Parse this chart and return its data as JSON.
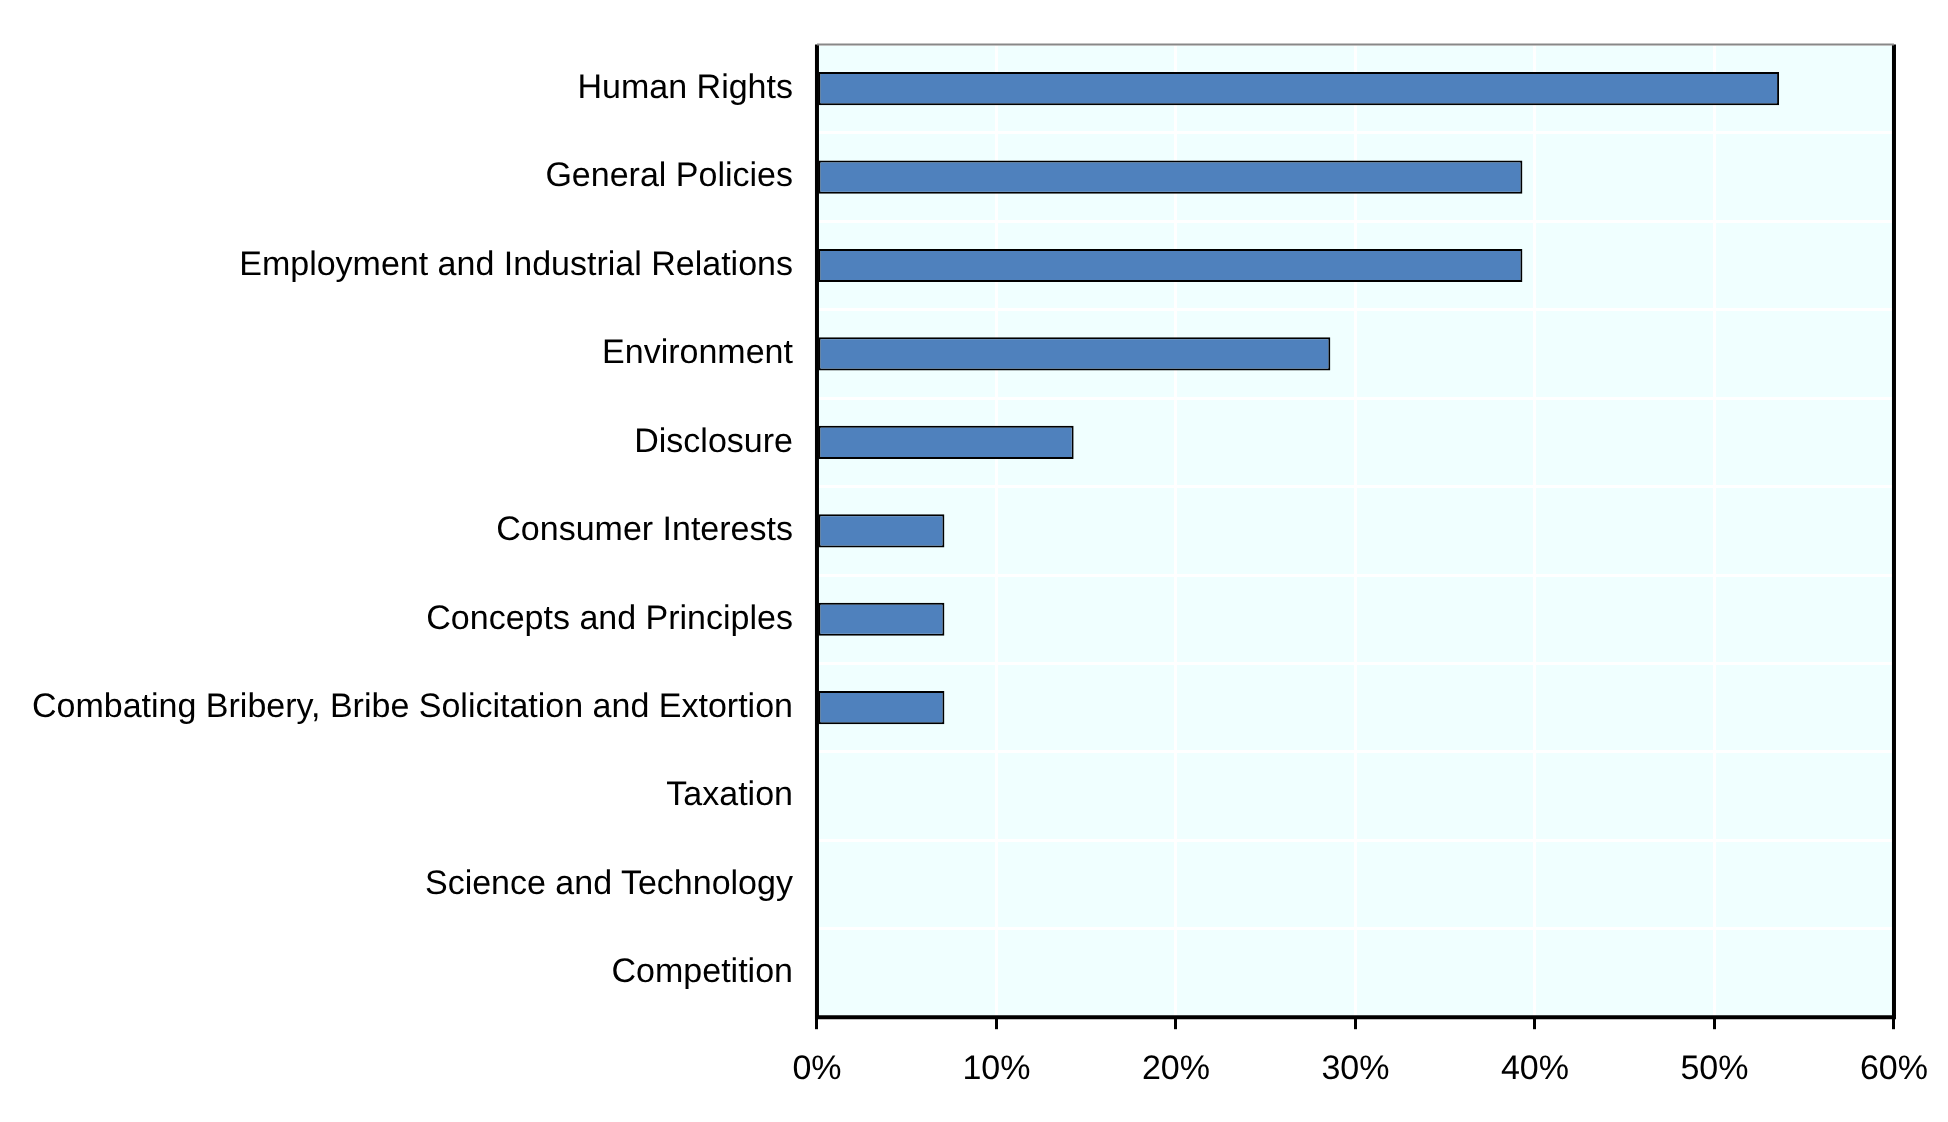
{
  "chart_data": {
    "type": "bar",
    "orientation": "horizontal",
    "categories": [
      "Human Rights",
      "General Policies",
      "Employment and Industrial Relations",
      "Environment",
      "Disclosure",
      "Consumer Interests",
      "Concepts and Principles",
      "Combating Bribery, Bribe Solicitation and Extortion",
      "Taxation",
      "Science and Technology",
      "Competition"
    ],
    "values": [
      53.6,
      39.3,
      39.3,
      28.6,
      14.3,
      7.1,
      7.1,
      7.1,
      0,
      0,
      0
    ],
    "color": "#4f81bd",
    "xlim": [
      0,
      60
    ],
    "xticks": [
      {
        "value": 0,
        "label": "0%"
      },
      {
        "value": 10,
        "label": "10%"
      },
      {
        "value": 20,
        "label": "20%"
      },
      {
        "value": 30,
        "label": "30%"
      },
      {
        "value": 40,
        "label": "40%"
      },
      {
        "value": 50,
        "label": "50%"
      },
      {
        "value": 60,
        "label": "60%"
      }
    ],
    "grid": true,
    "legend": false
  }
}
